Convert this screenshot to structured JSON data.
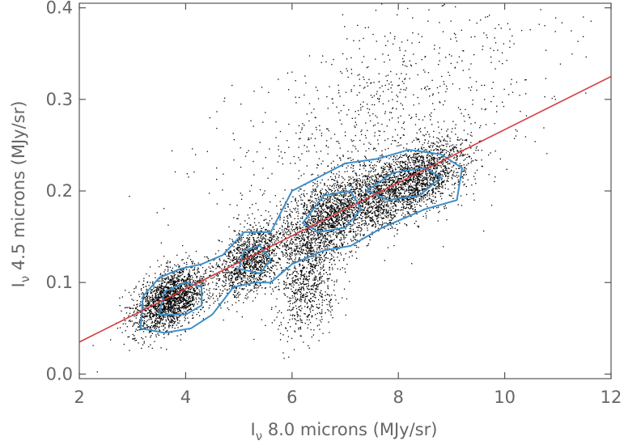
{
  "chart_data": {
    "type": "scatter",
    "title": "",
    "xlabel": "Iν 8.0 microns (MJy/sr)",
    "ylabel": "Iν 4.5 microns (MJy/sr)",
    "xlabel_parts": {
      "symbol": "I",
      "subscript": "ν",
      "text": " 8.0 microns (MJy/sr)"
    },
    "ylabel_parts": {
      "symbol": "I",
      "subscript": "ν",
      "text": " 4.5 microns (MJy/sr)"
    },
    "xlim": [
      2,
      12
    ],
    "ylim": [
      -0.005,
      0.405
    ],
    "x_ticks": [
      2,
      4,
      6,
      8,
      10,
      12
    ],
    "x_tick_labels": [
      "2",
      "4",
      "6",
      "8",
      "10",
      "12"
    ],
    "y_ticks": [
      0.0,
      0.1,
      0.2,
      0.3,
      0.4
    ],
    "y_tick_labels": [
      "0.0",
      "0.1",
      "0.2",
      "0.3",
      "0.4"
    ],
    "grid": false,
    "legend": "none",
    "colors": {
      "points": "#000000",
      "fit_line": "#d43c3c",
      "contours": "#3d8fc9",
      "axes": "#555555"
    },
    "fit_line": {
      "x": [
        2,
        12
      ],
      "y": [
        0.035,
        0.325
      ]
    },
    "point_density_clusters": [
      {
        "x": 3.7,
        "y": 0.082,
        "sx": 0.35,
        "sy": 0.016,
        "weight": 0.22
      },
      {
        "x": 5.2,
        "y": 0.125,
        "sx": 0.3,
        "sy": 0.018,
        "weight": 0.14
      },
      {
        "x": 6.3,
        "y": 0.11,
        "sx": 0.3,
        "sy": 0.03,
        "weight": 0.1
      },
      {
        "x": 6.8,
        "y": 0.175,
        "sx": 0.5,
        "sy": 0.02,
        "weight": 0.2
      },
      {
        "x": 8.2,
        "y": 0.21,
        "sx": 0.55,
        "sy": 0.018,
        "weight": 0.24
      },
      {
        "x": 7.5,
        "y": 0.27,
        "sx": 1.6,
        "sy": 0.06,
        "weight": 0.1
      }
    ],
    "contours": [
      {
        "name": "outer",
        "points": [
          [
            3.15,
            0.05
          ],
          [
            3.2,
            0.085
          ],
          [
            3.5,
            0.105
          ],
          [
            3.9,
            0.115
          ],
          [
            4.3,
            0.12
          ],
          [
            4.7,
            0.13
          ],
          [
            5.1,
            0.155
          ],
          [
            5.6,
            0.155
          ],
          [
            6.0,
            0.2
          ],
          [
            6.5,
            0.215
          ],
          [
            7.0,
            0.23
          ],
          [
            7.6,
            0.235
          ],
          [
            8.2,
            0.245
          ],
          [
            8.8,
            0.24
          ],
          [
            9.2,
            0.225
          ],
          [
            9.1,
            0.19
          ],
          [
            8.5,
            0.18
          ],
          [
            7.7,
            0.16
          ],
          [
            7.1,
            0.14
          ],
          [
            6.6,
            0.135
          ],
          [
            6.0,
            0.12
          ],
          [
            5.6,
            0.1
          ],
          [
            5.3,
            0.1
          ],
          [
            4.9,
            0.095
          ],
          [
            4.5,
            0.065
          ],
          [
            4.1,
            0.05
          ],
          [
            3.6,
            0.045
          ]
        ]
      },
      {
        "name": "inner-1",
        "points": [
          [
            3.5,
            0.065
          ],
          [
            3.6,
            0.09
          ],
          [
            4.0,
            0.1
          ],
          [
            4.3,
            0.095
          ],
          [
            4.3,
            0.075
          ],
          [
            4.0,
            0.065
          ]
        ]
      },
      {
        "name": "inner-2",
        "points": [
          [
            5.0,
            0.115
          ],
          [
            5.1,
            0.135
          ],
          [
            5.4,
            0.14
          ],
          [
            5.6,
            0.125
          ],
          [
            5.4,
            0.11
          ]
        ]
      },
      {
        "name": "inner-3",
        "points": [
          [
            6.2,
            0.165
          ],
          [
            6.6,
            0.195
          ],
          [
            7.1,
            0.2
          ],
          [
            7.3,
            0.18
          ],
          [
            7.0,
            0.16
          ],
          [
            6.5,
            0.155
          ]
        ]
      },
      {
        "name": "inner-4",
        "points": [
          [
            7.4,
            0.2
          ],
          [
            7.9,
            0.22
          ],
          [
            8.5,
            0.225
          ],
          [
            8.8,
            0.215
          ],
          [
            8.4,
            0.195
          ],
          [
            7.8,
            0.19
          ]
        ]
      }
    ]
  }
}
